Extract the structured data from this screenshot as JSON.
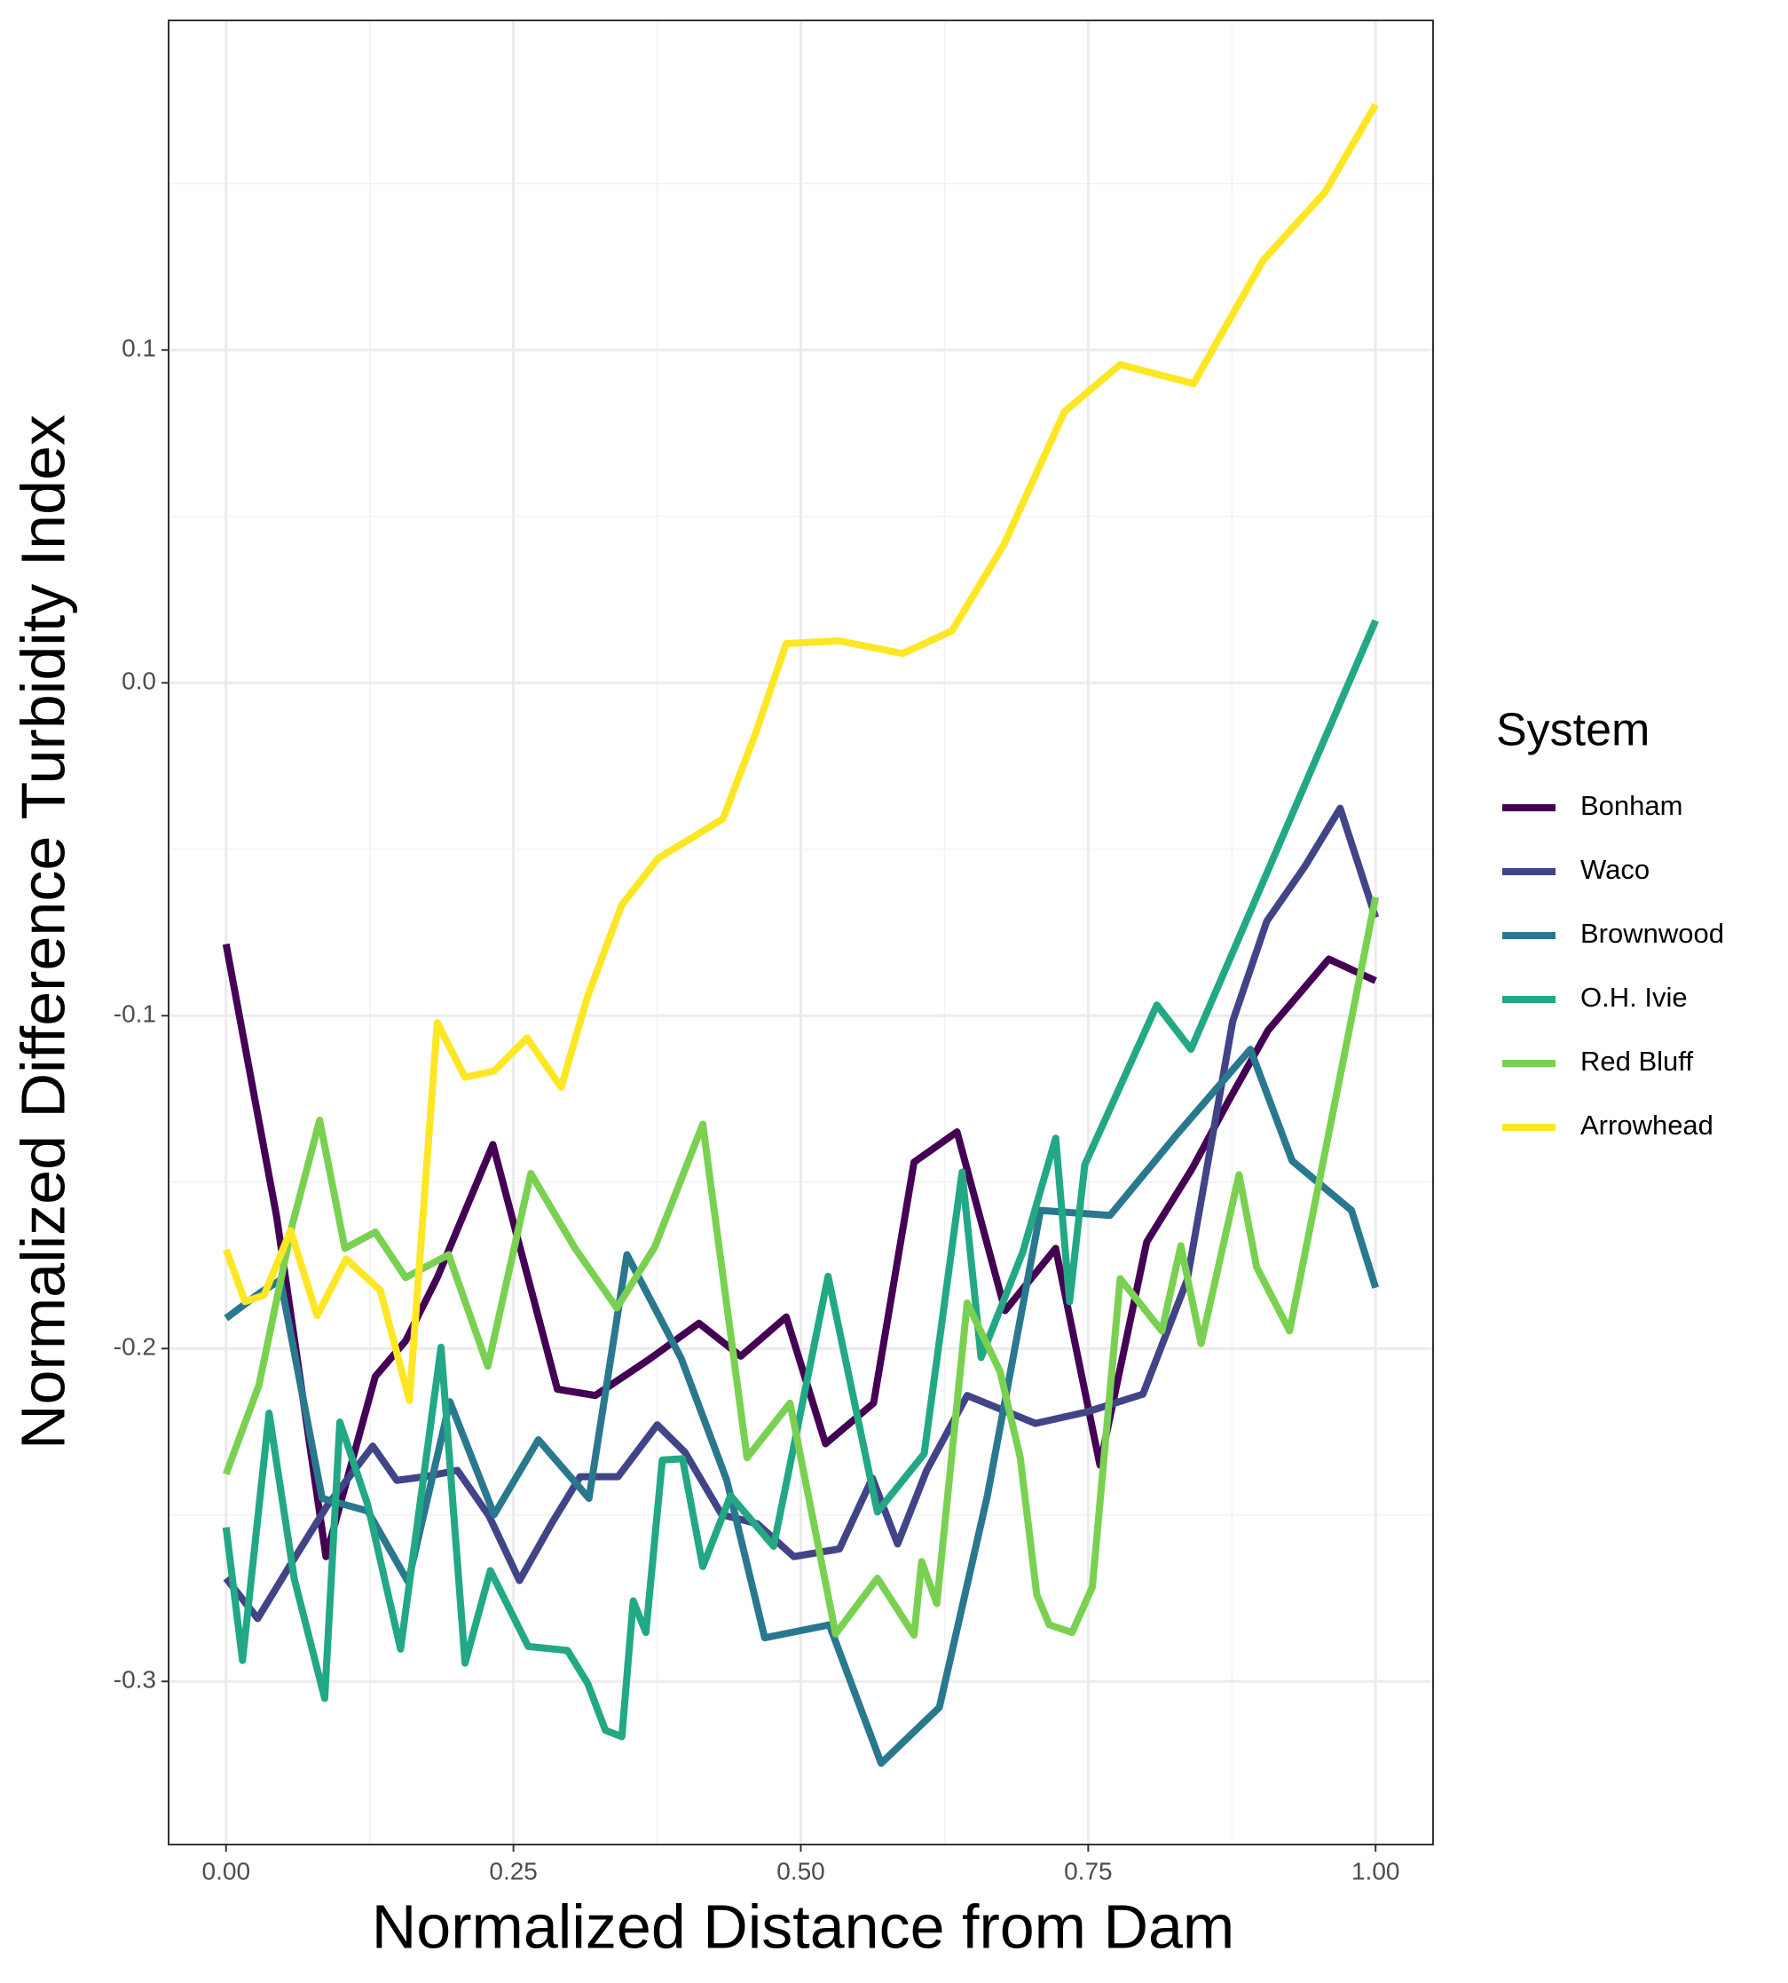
{
  "chart_data": {
    "type": "line",
    "xlabel": "Normalized Distance from Dam",
    "ylabel": "Normalized Difference Turbidity Index",
    "legend_title": "System",
    "legend": "right",
    "grid": true,
    "xlim": [
      -0.05,
      1.05
    ],
    "ylim": [
      -0.349,
      0.199
    ],
    "xticks": [
      {
        "value": 0,
        "label": "0.00"
      },
      {
        "value": 0.25,
        "label": "0.25"
      },
      {
        "value": 0.5,
        "label": "0.50"
      },
      {
        "value": 0.75,
        "label": "0.75"
      },
      {
        "value": 1,
        "label": "1.00"
      }
    ],
    "yticks": [
      -0.3,
      -0.2,
      -0.1,
      {
        "value": 0,
        "label": "0.0"
      },
      0.1
    ],
    "series": [
      {
        "name": "Bonham",
        "color": "#440154",
        "x": [
          0,
          0.044,
          0.0869,
          0.1298,
          0.1562,
          0.1837,
          0.2321,
          0.2882,
          0.3212,
          0.3674,
          0.4114,
          0.4477,
          0.4873,
          0.5215,
          0.5633,
          0.5985,
          0.6359,
          0.6777,
          0.7217,
          0.7602,
          0.8009,
          0.8405,
          0.8713,
          0.9065,
          0.9593,
          1
        ],
        "values": [
          -0.0785,
          -0.1604,
          -0.2625,
          -0.2084,
          -0.1977,
          -0.1787,
          -0.1387,
          -0.2122,
          -0.2141,
          -0.2034,
          -0.1924,
          -0.2023,
          -0.1905,
          -0.2286,
          -0.2164,
          -0.144,
          -0.1349,
          -0.1886,
          -0.1699,
          -0.235,
          -0.168,
          -0.1459,
          -0.1261,
          -0.1044,
          -0.083,
          -0.0895
        ]
      },
      {
        "name": "Waco",
        "color": "#414487",
        "x": [
          0,
          0.0275,
          0.055,
          0.088,
          0.1276,
          0.1485,
          0.1727,
          0.2013,
          0.2288,
          0.2552,
          0.2838,
          0.308,
          0.341,
          0.3751,
          0.3993,
          0.4312,
          0.462,
          0.4939,
          0.5336,
          0.5622,
          0.5842,
          0.6095,
          0.6447,
          0.7041,
          0.7492,
          0.7976,
          0.8361,
          0.8757,
          0.9054,
          0.9384,
          0.9692,
          1
        ],
        "values": [
          -0.269,
          -0.2811,
          -0.2655,
          -0.2472,
          -0.2293,
          -0.2396,
          -0.2385,
          -0.2366,
          -0.2503,
          -0.2697,
          -0.2522,
          -0.2385,
          -0.2385,
          -0.2229,
          -0.2312,
          -0.2499,
          -0.2526,
          -0.2625,
          -0.2602,
          -0.2389,
          -0.2587,
          -0.2366,
          -0.2141,
          -0.2225,
          -0.219,
          -0.2137,
          -0.1794,
          -0.1017,
          -0.0716,
          -0.0552,
          -0.0377,
          -0.0705
        ]
      },
      {
        "name": "Brownwood",
        "color": "#2A788E",
        "x": [
          0,
          0.0297,
          0.0473,
          0.0836,
          0.1232,
          0.1584,
          0.1947,
          0.2332,
          0.2717,
          0.3157,
          0.3487,
          0.396,
          0.4356,
          0.4686,
          0.5248,
          0.5699,
          0.6205,
          0.6623,
          0.7085,
          0.769,
          0.8273,
          0.8911,
          0.9274,
          0.9791,
          1
        ],
        "values": [
          -0.1909,
          -0.1832,
          -0.1794,
          -0.245,
          -0.2488,
          -0.2701,
          -0.216,
          -0.2499,
          -0.2274,
          -0.245,
          -0.1718,
          -0.203,
          -0.2396,
          -0.2869,
          -0.283,
          -0.3246,
          -0.3078,
          -0.2442,
          -0.1585,
          -0.16,
          -0.1356,
          -0.1101,
          -0.1436,
          -0.1585,
          -0.1817
        ]
      },
      {
        "name": "O.H. Ivie",
        "color": "#22A884",
        "x": [
          0,
          0.0143,
          0.0374,
          0.0594,
          0.0858,
          0.099,
          0.1232,
          0.1518,
          0.187,
          0.2079,
          0.2299,
          0.2629,
          0.297,
          0.3146,
          0.33,
          0.3443,
          0.3542,
          0.3652,
          0.3795,
          0.3971,
          0.4147,
          0.4389,
          0.4763,
          0.5237,
          0.5666,
          0.6073,
          0.6403,
          0.6568,
          0.6931,
          0.7217,
          0.7338,
          0.747,
          0.8097,
          0.8394,
          1
        ],
        "values": [
          -0.2537,
          -0.2937,
          -0.2194,
          -0.2693,
          -0.3051,
          -0.2221,
          -0.2469,
          -0.2903,
          -0.1996,
          -0.2945,
          -0.2667,
          -0.2895,
          -0.2907,
          -0.3006,
          -0.3147,
          -0.3166,
          -0.2758,
          -0.2853,
          -0.2335,
          -0.2331,
          -0.2655,
          -0.2442,
          -0.2594,
          -0.1783,
          -0.2491,
          -0.2316,
          -0.147,
          -0.2027,
          -0.171,
          -0.1368,
          -0.1859,
          -0.1448,
          -0.0968,
          -0.1101,
          0.0187
        ]
      },
      {
        "name": "Red Bluff",
        "color": "#7AD151",
        "x": [
          0,
          0.0286,
          0.0572,
          0.0814,
          0.1034,
          0.1298,
          0.1562,
          0.1936,
          0.2277,
          0.2651,
          0.3036,
          0.3399,
          0.3729,
          0.4147,
          0.4532,
          0.4906,
          0.5303,
          0.5666,
          0.5985,
          0.6051,
          0.6183,
          0.6447,
          0.6733,
          0.6909,
          0.7052,
          0.7162,
          0.736,
          0.7536,
          0.7778,
          0.8141,
          0.8306,
          0.8482,
          0.8812,
          0.8966,
          0.9252,
          1
        ],
        "values": [
          -0.2377,
          -0.211,
          -0.1634,
          -0.1314,
          -0.1699,
          -0.165,
          -0.1787,
          -0.1718,
          -0.2053,
          -0.1474,
          -0.1699,
          -0.1878,
          -0.1695,
          -0.1326,
          -0.2328,
          -0.2164,
          -0.2857,
          -0.269,
          -0.2861,
          -0.264,
          -0.2766,
          -0.1863,
          -0.2069,
          -0.2328,
          -0.2739,
          -0.283,
          -0.2853,
          -0.2716,
          -0.179,
          -0.1947,
          -0.1691,
          -0.1985,
          -0.1478,
          -0.1756,
          -0.1947,
          -0.0644
        ]
      },
      {
        "name": "Arrowhead",
        "color": "#FDE725",
        "x": [
          0,
          0.0165,
          0.033,
          0.0561,
          0.0792,
          0.1045,
          0.1342,
          0.1595,
          0.1837,
          0.2079,
          0.2332,
          0.2618,
          0.2915,
          0.3146,
          0.3443,
          0.3762,
          0.4037,
          0.4323,
          0.4609,
          0.4873,
          0.5336,
          0.5886,
          0.6315,
          0.6766,
          0.7294,
          0.7778,
          0.8416,
          0.9021,
          0.956,
          1
        ],
        "values": [
          -0.1703,
          -0.1859,
          -0.184,
          -0.1646,
          -0.1901,
          -0.1731,
          -0.1825,
          -0.2156,
          -0.1021,
          -0.1185,
          -0.1166,
          -0.1067,
          -0.1215,
          -0.0941,
          -0.0667,
          -0.0526,
          -0.0469,
          -0.0408,
          -0.0149,
          0.0118,
          0.0126,
          0.0088,
          0.0156,
          0.0415,
          0.0815,
          0.0956,
          0.0899,
          0.1269,
          0.1474,
          0.1737
        ]
      }
    ]
  }
}
